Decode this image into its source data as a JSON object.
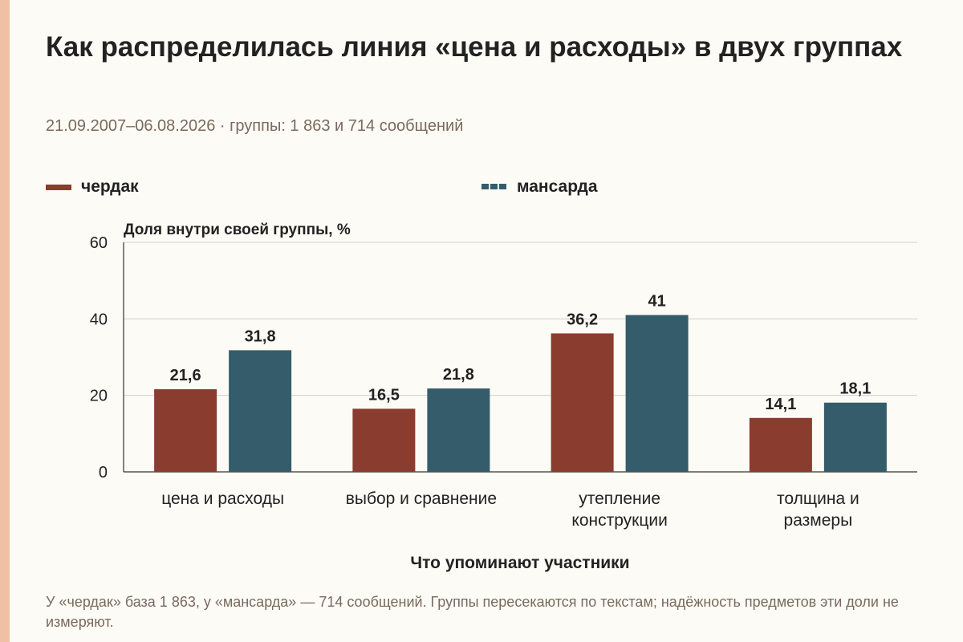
{
  "title": "Как распределилась линия «цена и расходы» в двух группах",
  "subtitle": "21.09.2007–06.08.2026 · группы: 1 863 и 714 сообщений",
  "footnote": "У «чердак» база 1 863, у «мансарда» — 714 сообщений. Группы пересекаются по текстам; надёжность предметов эти доли не измеряют.",
  "colors": {
    "background": "#fcfbf5",
    "accent_strip": "#efc0a4",
    "series1": "#8a3c2e",
    "series2": "#345c6a",
    "grid": "#cfcfcf",
    "axis": "#333333"
  },
  "chart_data": {
    "type": "bar",
    "categories": [
      "цена и расходы",
      "выбор и сравнение",
      "утепление конструкции",
      "толщина и размеры"
    ],
    "series": [
      {
        "name": "чердак",
        "values": [
          21.6,
          16.5,
          36.2,
          14.1
        ],
        "labels": [
          "21,6",
          "16,5",
          "36,2",
          "14,1"
        ],
        "color": "#8a3c2e"
      },
      {
        "name": "мансарда",
        "values": [
          31.8,
          21.8,
          41,
          18.1
        ],
        "labels": [
          "31,8",
          "21,8",
          "41",
          "18,1"
        ],
        "color": "#345c6a"
      }
    ],
    "xlabel": "Что упоминают участники",
    "ylabel": "Доля внутри своей группы, %",
    "ylim": [
      0,
      60
    ],
    "yticks": [
      0,
      20,
      40,
      60
    ],
    "grid": true,
    "legend": "top-left"
  }
}
